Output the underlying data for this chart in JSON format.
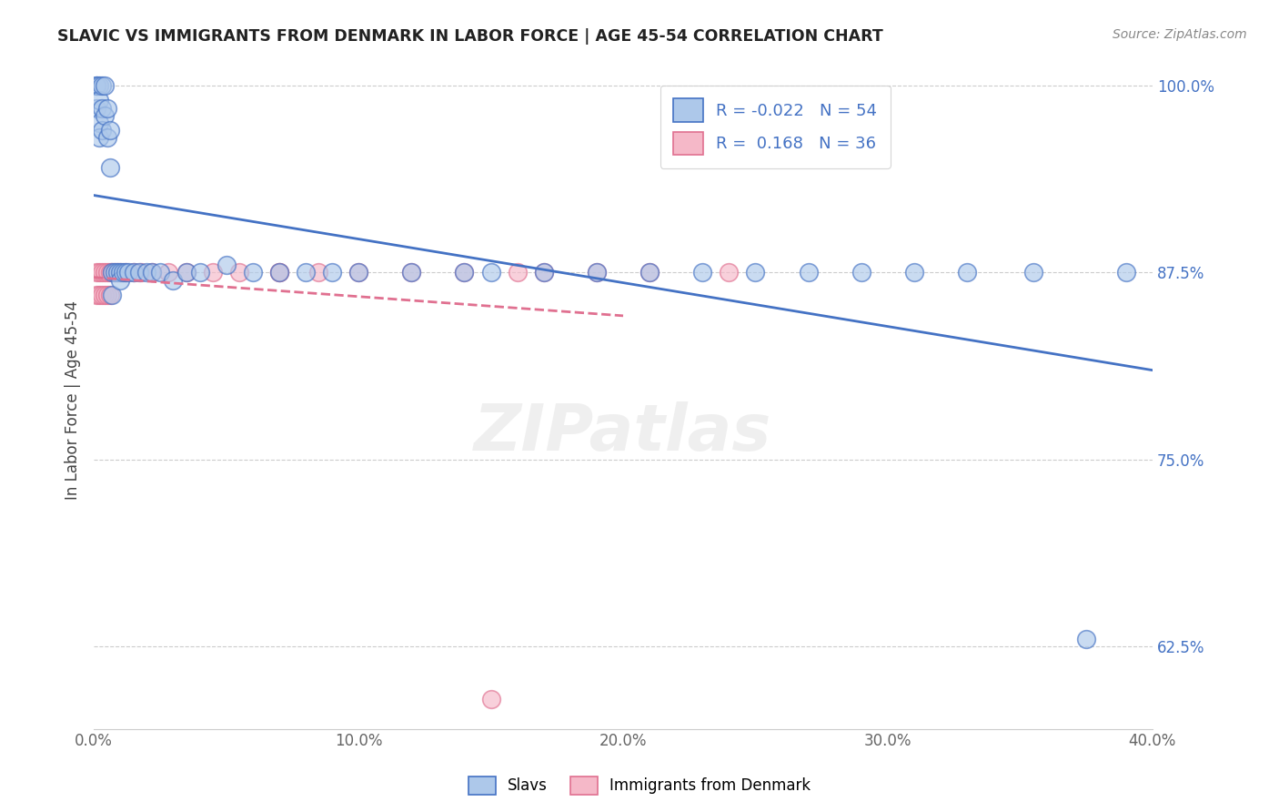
{
  "title": "SLAVIC VS IMMIGRANTS FROM DENMARK IN LABOR FORCE | AGE 45-54 CORRELATION CHART",
  "source": "Source: ZipAtlas.com",
  "xlabel": "",
  "ylabel": "In Labor Force | Age 45-54",
  "xlim": [
    0.0,
    0.4
  ],
  "ylim": [
    0.57,
    1.01
  ],
  "xticks": [
    0.0,
    0.1,
    0.2,
    0.3,
    0.4
  ],
  "xtick_labels": [
    "0.0%",
    "10.0%",
    "20.0%",
    "30.0%",
    "40.0%"
  ],
  "yticks": [
    0.625,
    0.75,
    0.875,
    1.0
  ],
  "ytick_labels": [
    "62.5%",
    "75.0%",
    "87.5%",
    "100.0%"
  ],
  "slavs_R": -0.022,
  "slavs_N": 54,
  "denmark_R": 0.168,
  "denmark_N": 36,
  "slavs_color": "#adc8ea",
  "denmark_color": "#f5b8c8",
  "slavs_line_color": "#4472c4",
  "denmark_line_color": "#e07090",
  "background_color": "#ffffff",
  "grid_color": "#cccccc",
  "slavs_x": [
    0.001,
    0.001,
    0.001,
    0.002,
    0.002,
    0.002,
    0.002,
    0.003,
    0.003,
    0.003,
    0.004,
    0.004,
    0.005,
    0.005,
    0.006,
    0.006,
    0.007,
    0.007,
    0.008,
    0.009,
    0.01,
    0.01,
    0.011,
    0.012,
    0.013,
    0.015,
    0.017,
    0.02,
    0.022,
    0.025,
    0.03,
    0.035,
    0.04,
    0.05,
    0.06,
    0.07,
    0.08,
    0.09,
    0.1,
    0.12,
    0.14,
    0.15,
    0.17,
    0.19,
    0.21,
    0.23,
    0.25,
    0.27,
    0.29,
    0.31,
    0.33,
    0.355,
    0.375,
    0.39
  ],
  "slavs_y": [
    1.0,
    1.0,
    0.985,
    1.0,
    0.99,
    0.975,
    0.965,
    1.0,
    0.985,
    0.97,
    1.0,
    0.98,
    0.985,
    0.965,
    0.97,
    0.945,
    0.875,
    0.86,
    0.875,
    0.875,
    0.875,
    0.87,
    0.875,
    0.875,
    0.875,
    0.875,
    0.875,
    0.875,
    0.875,
    0.875,
    0.87,
    0.875,
    0.875,
    0.88,
    0.875,
    0.875,
    0.875,
    0.875,
    0.875,
    0.875,
    0.875,
    0.875,
    0.875,
    0.875,
    0.875,
    0.875,
    0.875,
    0.875,
    0.875,
    0.875,
    0.875,
    0.875,
    0.63,
    0.875
  ],
  "denmark_x": [
    0.001,
    0.001,
    0.002,
    0.002,
    0.003,
    0.003,
    0.004,
    0.004,
    0.005,
    0.005,
    0.006,
    0.006,
    0.007,
    0.008,
    0.009,
    0.01,
    0.012,
    0.015,
    0.018,
    0.022,
    0.028,
    0.035,
    0.045,
    0.055,
    0.07,
    0.085,
    0.1,
    0.12,
    0.14,
    0.16,
    0.17,
    0.19,
    0.21,
    0.24,
    0.07,
    0.15
  ],
  "denmark_y": [
    0.875,
    0.86,
    0.875,
    0.86,
    0.875,
    0.86,
    0.875,
    0.86,
    0.875,
    0.86,
    0.875,
    0.86,
    0.875,
    0.875,
    0.875,
    0.875,
    0.875,
    0.875,
    0.875,
    0.875,
    0.875,
    0.875,
    0.875,
    0.875,
    0.875,
    0.875,
    0.875,
    0.875,
    0.875,
    0.875,
    0.875,
    0.875,
    0.875,
    0.875,
    0.875,
    0.59
  ],
  "legend_R_label1": "R = -0.022   N = 54",
  "legend_R_label2": "R =  0.168   N = 36"
}
